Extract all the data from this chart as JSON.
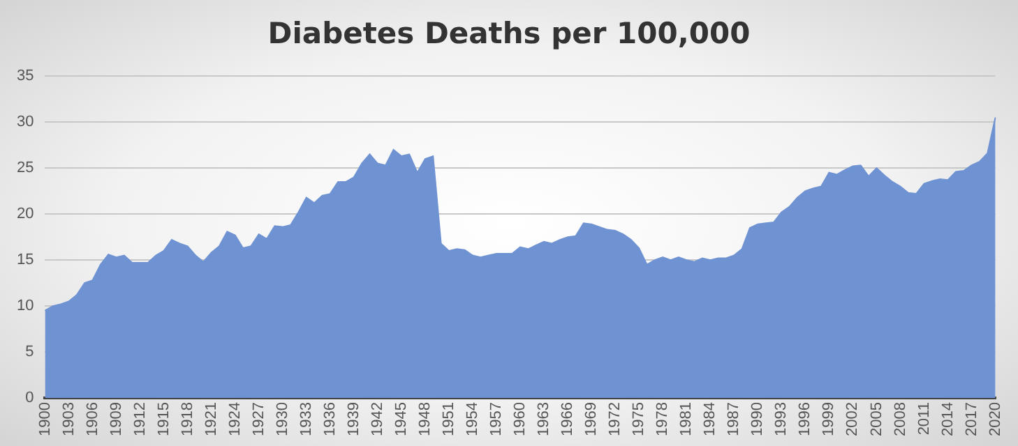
{
  "chart_data": {
    "type": "area",
    "title": "Diabetes Deaths per 100,000",
    "categories": [
      "1900",
      null,
      null,
      "1903",
      null,
      null,
      "1906",
      null,
      null,
      "1909",
      null,
      null,
      "1912",
      null,
      null,
      "1915",
      null,
      null,
      "1918",
      null,
      null,
      "1921",
      null,
      null,
      "1924",
      null,
      null,
      "1927",
      null,
      null,
      "1930",
      null,
      null,
      "1933",
      null,
      null,
      "1936",
      null,
      null,
      "1939",
      null,
      null,
      "1942",
      null,
      null,
      "1945",
      null,
      null,
      "1948",
      null,
      null,
      "1951",
      null,
      null,
      "1954",
      null,
      null,
      "1957",
      null,
      null,
      "1960",
      null,
      null,
      "1963",
      null,
      null,
      "1966",
      null,
      null,
      "1969",
      null,
      null,
      "1972",
      null,
      null,
      "1975",
      null,
      null,
      "1978",
      null,
      null,
      "1981",
      null,
      null,
      "1984",
      null,
      null,
      "1987",
      null,
      null,
      "1990",
      null,
      null,
      "1993",
      null,
      null,
      "1996",
      null,
      null,
      "1999",
      null,
      null,
      "2002",
      null,
      null,
      "2005",
      null,
      null,
      "2008",
      null,
      null,
      "2011",
      null,
      null,
      "2014",
      null,
      null,
      "2017",
      null,
      null,
      "2020"
    ],
    "series": [
      {
        "color": "#6f93d2",
        "values": [
          9.5,
          10,
          10.2,
          10.5,
          11.2,
          12.5,
          12.8,
          14.5,
          15.6,
          15.3,
          15.5,
          14.7,
          14.7,
          14.7,
          15.5,
          16,
          17.2,
          16.8,
          16.5,
          15.5,
          14.8,
          15.8,
          16.5,
          18.1,
          17.7,
          16.3,
          16.5,
          17.8,
          17.3,
          18.7,
          18.6,
          18.8,
          20.2,
          21.8,
          21.2,
          22,
          22.2,
          23.5,
          23.5,
          24,
          25.5,
          26.5,
          25.5,
          25.3,
          27,
          26.3,
          26.5,
          24.5,
          26,
          26.3,
          16.8,
          16,
          16.2,
          16.1,
          15.5,
          15.3,
          15.5,
          15.7,
          15.7,
          15.7,
          16.4,
          16.2,
          16.6,
          17,
          16.8,
          17.2,
          17.5,
          17.6,
          19,
          18.9,
          18.6,
          18.3,
          18.2,
          17.8,
          17.2,
          16.3,
          14.5,
          15,
          15.3,
          15,
          15.3,
          15,
          14.8,
          15.2,
          15,
          15.2,
          15.2,
          15.5,
          16.2,
          18.5,
          18.9,
          19,
          19.1,
          20.2,
          20.8,
          21.8,
          22.5,
          22.8,
          23,
          24.5,
          24.3,
          24.8,
          25.2,
          25.3,
          24.1,
          25,
          24.2,
          23.5,
          23,
          22.3,
          22.2,
          23.3,
          23.6,
          23.8,
          23.7,
          24.6,
          24.7,
          25.3,
          25.7,
          26.6,
          30.5
        ]
      }
    ],
    "ylim": [
      0,
      35
    ],
    "yticks": [
      0,
      5,
      10,
      15,
      20,
      25,
      30,
      35
    ],
    "grid": "y",
    "legend": false
  }
}
